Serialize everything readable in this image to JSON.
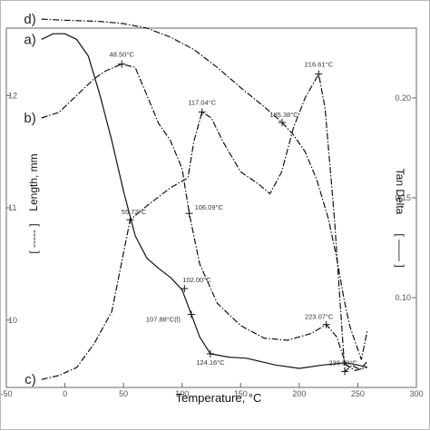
{
  "chart_data": {
    "type": "line",
    "title": "",
    "xlabel": "Temperature, °C",
    "ylabel_left": "Length, mm",
    "ylabel_right": "Tan Delta",
    "left_legend_mark": "[ ----- ]",
    "right_legend_mark": "[ —— ]",
    "xlim": [
      -50,
      300
    ],
    "ylim_left": [
      9.4,
      12.6
    ],
    "ylim_right": [
      0.055,
      0.235
    ],
    "x_ticks": [
      {
        "value": -50,
        "label": "-50"
      },
      {
        "value": 0,
        "label": "0"
      },
      {
        "value": 50,
        "label": "50"
      },
      {
        "value": 100,
        "label": "100"
      },
      {
        "value": 150,
        "label": "150"
      },
      {
        "value": 200,
        "label": "200"
      },
      {
        "value": 250,
        "label": "250"
      },
      {
        "value": 300,
        "label": "300"
      }
    ],
    "y_left_ticks": [
      {
        "value": 10,
        "label": "10"
      },
      {
        "value": 11,
        "label": "11"
      },
      {
        "value": 12,
        "label": "12"
      }
    ],
    "y_right_ticks": [
      {
        "value": 0.1,
        "label": "0.10"
      },
      {
        "value": 0.15,
        "label": "0.15"
      },
      {
        "value": 0.2,
        "label": "0.20"
      }
    ],
    "grid": false,
    "series": [
      {
        "name": "a)",
        "axis": "left",
        "style": "solid",
        "points": [
          [
            -20,
            12.5
          ],
          [
            -10,
            12.55
          ],
          [
            0,
            12.55
          ],
          [
            10,
            12.5
          ],
          [
            20,
            12.35
          ],
          [
            30,
            12.0
          ],
          [
            40,
            11.6
          ],
          [
            50,
            11.15
          ],
          [
            60,
            10.75
          ],
          [
            70,
            10.55
          ],
          [
            80,
            10.46
          ],
          [
            90,
            10.38
          ],
          [
            100,
            10.27
          ],
          [
            107.88,
            10.05
          ],
          [
            115,
            9.85
          ],
          [
            124.16,
            9.7
          ],
          [
            140,
            9.67
          ],
          [
            155,
            9.66
          ],
          [
            180,
            9.6
          ],
          [
            200,
            9.57
          ],
          [
            220,
            9.6
          ],
          [
            240,
            9.62
          ],
          [
            250,
            9.6
          ],
          [
            258,
            9.58
          ]
        ]
      },
      {
        "name": "b)",
        "axis": "left",
        "style": "dash-dot",
        "points": [
          [
            -20,
            11.8
          ],
          [
            -5,
            11.85
          ],
          [
            5,
            11.95
          ],
          [
            15,
            12.05
          ],
          [
            25,
            12.15
          ],
          [
            35,
            12.22
          ],
          [
            48.5,
            12.28
          ],
          [
            60,
            12.25
          ],
          [
            70,
            12.0
          ],
          [
            80,
            11.75
          ],
          [
            90,
            11.6
          ],
          [
            100,
            11.35
          ],
          [
            106.09,
            10.95
          ],
          [
            115,
            10.5
          ],
          [
            130,
            10.15
          ],
          [
            150,
            9.95
          ],
          [
            170,
            9.84
          ],
          [
            190,
            9.82
          ],
          [
            210,
            9.88
          ],
          [
            223.07,
            9.96
          ],
          [
            232,
            9.85
          ],
          [
            240,
            9.6
          ],
          [
            248,
            9.55
          ],
          [
            258,
            9.58
          ]
        ]
      },
      {
        "name": "c)",
        "axis": "right",
        "style": "dash-dot",
        "points": [
          [
            -20,
            0.059
          ],
          [
            -5,
            0.061
          ],
          [
            10,
            0.065
          ],
          [
            25,
            0.077
          ],
          [
            40,
            0.093
          ],
          [
            55.72,
            0.139
          ],
          [
            70,
            0.146
          ],
          [
            90,
            0.155
          ],
          [
            105,
            0.16
          ],
          [
            110,
            0.178
          ],
          [
            117.04,
            0.193
          ],
          [
            125,
            0.19
          ],
          [
            135,
            0.178
          ],
          [
            150,
            0.163
          ],
          [
            165,
            0.157
          ],
          [
            175,
            0.152
          ],
          [
            185,
            0.163
          ],
          [
            195,
            0.185
          ],
          [
            205,
            0.2
          ],
          [
            216.61,
            0.212
          ],
          [
            222,
            0.195
          ],
          [
            230,
            0.14
          ],
          [
            238.88,
            0.063
          ],
          [
            245,
            0.066
          ],
          [
            252,
            0.064
          ],
          [
            258,
            0.068
          ]
        ]
      },
      {
        "name": "d)",
        "axis": "left",
        "style": "dash-dot",
        "points": [
          [
            -20,
            12.68
          ],
          [
            0,
            12.67
          ],
          [
            30,
            12.66
          ],
          [
            50,
            12.64
          ],
          [
            70,
            12.6
          ],
          [
            90,
            12.52
          ],
          [
            110,
            12.41
          ],
          [
            130,
            12.25
          ],
          [
            150,
            12.07
          ],
          [
            170,
            11.9
          ],
          [
            185.38,
            11.76
          ],
          [
            195,
            11.65
          ],
          [
            205,
            11.5
          ],
          [
            215,
            11.25
          ],
          [
            225,
            10.9
          ],
          [
            232,
            10.55
          ],
          [
            238,
            10.2
          ],
          [
            243,
            9.95
          ],
          [
            248,
            9.8
          ],
          [
            253,
            9.65
          ],
          [
            258,
            9.9
          ]
        ]
      }
    ],
    "annotations": [
      {
        "text": "48.50°C",
        "x": 48.5,
        "y": 12.28,
        "axis": "left"
      },
      {
        "text": "55.72°C",
        "x": 55.72,
        "y": 0.139,
        "axis": "right"
      },
      {
        "text": "117.04°C",
        "x": 117.04,
        "y": 0.193,
        "axis": "right"
      },
      {
        "text": "106.09°C",
        "x": 106.09,
        "y": 10.95,
        "axis": "left"
      },
      {
        "text": "185.38°C",
        "x": 185.38,
        "y": 11.76,
        "axis": "left"
      },
      {
        "text": "216.61°C",
        "x": 216.61,
        "y": 0.212,
        "axis": "right"
      },
      {
        "text": "102.00°C",
        "x": 102.0,
        "y": 10.28,
        "axis": "left"
      },
      {
        "text": "107.88°C(l)",
        "x": 107.88,
        "y": 10.05,
        "axis": "left"
      },
      {
        "text": "223.07°C",
        "x": 223.07,
        "y": 9.96,
        "axis": "left"
      },
      {
        "text": "124.16°C",
        "x": 124.16,
        "y": 9.7,
        "axis": "left"
      },
      {
        "text": "238.88°C",
        "x": 238.88,
        "y": 0.063,
        "axis": "right"
      }
    ]
  }
}
